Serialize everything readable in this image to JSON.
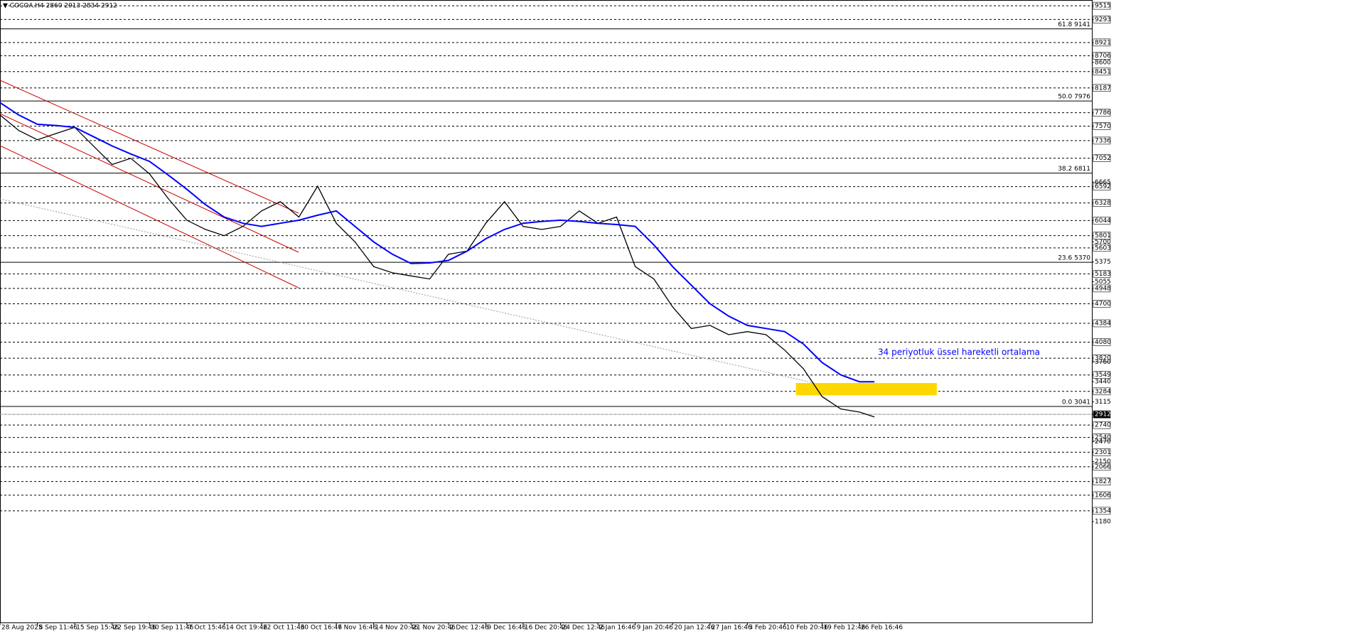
{
  "chart_data": {
    "type": "line",
    "header": "▼ COCOA.H4  2860 2913 2834 2912",
    "annotation": "34 periyotluk üssel hareketli ortalama",
    "x": [
      0,
      0.5,
      1,
      1.5,
      2,
      2.5,
      3,
      3.5,
      4,
      4.5,
      5,
      5.5,
      6,
      6.5,
      7,
      7.5,
      8,
      8.5,
      9,
      9.5,
      10,
      10.5,
      11,
      11.5,
      12,
      12.5,
      13,
      13.5,
      14,
      14.5,
      15,
      15.5,
      16,
      16.5,
      17,
      17.5,
      18,
      18.5,
      19,
      19.5,
      20,
      20.5,
      21,
      21.5,
      22,
      22.5,
      23,
      23.4
    ],
    "series": [
      {
        "name": "COCOA.H4",
        "color": "#000000",
        "values": [
          7750,
          7500,
          7350,
          7450,
          7550,
          7250,
          6950,
          7050,
          6800,
          6400,
          6050,
          5900,
          5800,
          5950,
          6200,
          6350,
          6100,
          6600,
          6000,
          5700,
          5300,
          5200,
          5150,
          5100,
          5500,
          5550,
          6000,
          6350,
          5950,
          5900,
          5950,
          6200,
          6000,
          6100,
          5300,
          5100,
          4650,
          4300,
          4350,
          4200,
          4250,
          4200,
          3950,
          3650,
          3200,
          3000,
          2950,
          2870
        ]
      },
      {
        "name": "EMA 34",
        "color": "#0000ff",
        "values": [
          7950,
          7750,
          7600,
          7580,
          7550,
          7400,
          7250,
          7120,
          7000,
          6780,
          6550,
          6300,
          6100,
          6000,
          5950,
          6000,
          6050,
          6130,
          6200,
          5950,
          5700,
          5500,
          5350,
          5360,
          5400,
          5550,
          5750,
          5900,
          6000,
          6030,
          6050,
          6030,
          6000,
          5980,
          5950,
          5650,
          5300,
          5000,
          4700,
          4500,
          4350,
          4300,
          4250,
          4050,
          3750,
          3550,
          3440,
          3440
        ]
      }
    ],
    "xticks": [
      {
        "value": 0,
        "label": "28 Aug 2025"
      },
      {
        "value": 1,
        "label": "8 Sep 11:46"
      },
      {
        "value": 2,
        "label": "15 Sep 15:46"
      },
      {
        "value": 3,
        "label": "22 Sep 19:46"
      },
      {
        "value": 4,
        "label": "30 Sep 11:46"
      },
      {
        "value": 5,
        "label": "7 Oct 15:46"
      },
      {
        "value": 6,
        "label": "14 Oct 19:46"
      },
      {
        "value": 7,
        "label": "22 Oct 11:46"
      },
      {
        "value": 8,
        "label": "30 Oct 16:46"
      },
      {
        "value": 9,
        "label": "7 Nov 16:46"
      },
      {
        "value": 10,
        "label": "14 Nov 20:46"
      },
      {
        "value": 11,
        "label": "21 Nov 20:46"
      },
      {
        "value": 12,
        "label": "2 Dec 12:46"
      },
      {
        "value": 13,
        "label": "9 Dec 16:46"
      },
      {
        "value": 14,
        "label": "16 Dec 20:46"
      },
      {
        "value": 15,
        "label": "24 Dec 12:46"
      },
      {
        "value": 16,
        "label": "2 Jan 16:46"
      },
      {
        "value": 17,
        "label": "9 Jan 20:46"
      },
      {
        "value": 18,
        "label": "20 Jan 12:46"
      },
      {
        "value": 19,
        "label": "27 Jan 16:46"
      },
      {
        "value": 20,
        "label": "3 Feb 20:46"
      },
      {
        "value": 21,
        "label": "10 Feb 20:46"
      },
      {
        "value": 22,
        "label": "19 Feb 12:46"
      },
      {
        "value": 23,
        "label": "26 Feb 16:46"
      }
    ],
    "xlim": [
      0,
      29.22
    ],
    "ylim": [
      -450,
      9585
    ],
    "yticks": [
      9515,
      9293,
      8921,
      8706,
      8451,
      8187,
      7786,
      7570,
      7336,
      7052,
      6592,
      6328,
      6044,
      5801,
      5603,
      5183,
      4948,
      4700,
      4384,
      4080,
      3820,
      3549,
      3284,
      2912,
      2740,
      2540,
      2301,
      2066,
      1827,
      1606,
      1354
    ],
    "minor_yticks": [
      8600,
      6665,
      5700,
      5375,
      5055,
      3760,
      3440,
      3115,
      2470,
      2150,
      1180
    ],
    "current_price": 2912,
    "fib_levels": [
      {
        "value": 9141,
        "label": "61.8 9141"
      },
      {
        "value": 7976,
        "label": "50.0 7976"
      },
      {
        "value": 6811,
        "label": "38.2 6811"
      },
      {
        "value": 5370,
        "label": "23.6 5370"
      },
      {
        "value": 3041,
        "label": "0.0 3041"
      }
    ],
    "zone": {
      "xlim": [
        21.3,
        25.07
      ],
      "ylim": [
        3220,
        3420
      ],
      "color": "#ffd700"
    },
    "grid": true
  }
}
